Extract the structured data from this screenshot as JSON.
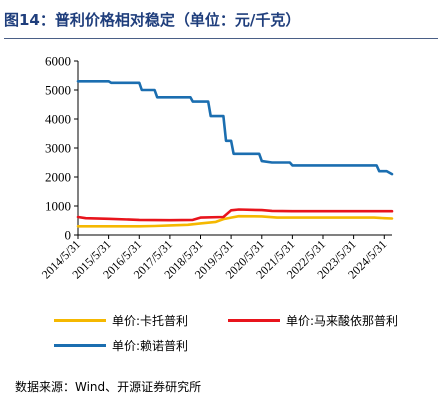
{
  "figure": {
    "title": "图14：普利价格相对稳定（单位：元/千克）",
    "source": "数据来源：Wind、开源证券研究所"
  },
  "chart_data": {
    "type": "line",
    "title": "普利价格相对稳定（单位：元/千克）",
    "xlabel": "",
    "ylabel": "",
    "ylim": [
      0,
      6000
    ],
    "yticks": [
      0,
      1000,
      2000,
      3000,
      4000,
      5000,
      6000
    ],
    "xlim": [
      "2014-05-31",
      "2024-08-31"
    ],
    "xticks": [
      "2014/5/31",
      "2015/5/31",
      "2016/5/31",
      "2017/5/31",
      "2018/5/31",
      "2019/5/31",
      "2020/5/31",
      "2021/5/31",
      "2022/5/31",
      "2023/5/31",
      "2024/5/31"
    ],
    "grid": false,
    "legend_position": "bottom",
    "series": [
      {
        "name": "单价:卡托普利",
        "color": "#f5b800",
        "points": [
          [
            "2014-05-31",
            300
          ],
          [
            "2015-05-31",
            300
          ],
          [
            "2016-05-31",
            300
          ],
          [
            "2016-11-30",
            310
          ],
          [
            "2017-05-31",
            330
          ],
          [
            "2017-12-31",
            350
          ],
          [
            "2018-05-31",
            400
          ],
          [
            "2018-11-30",
            450
          ],
          [
            "2019-02-28",
            550
          ],
          [
            "2019-05-31",
            600
          ],
          [
            "2019-08-31",
            650
          ],
          [
            "2020-05-31",
            640
          ],
          [
            "2020-11-30",
            600
          ],
          [
            "2021-05-31",
            600
          ],
          [
            "2022-05-31",
            600
          ],
          [
            "2023-05-31",
            600
          ],
          [
            "2024-01-31",
            600
          ],
          [
            "2024-05-31",
            580
          ],
          [
            "2024-08-31",
            570
          ]
        ]
      },
      {
        "name": "单价:马来酸依那普利",
        "color": "#e8141c",
        "points": [
          [
            "2014-05-31",
            620
          ],
          [
            "2014-08-31",
            580
          ],
          [
            "2015-05-31",
            560
          ],
          [
            "2016-05-31",
            520
          ],
          [
            "2017-05-31",
            510
          ],
          [
            "2018-02-28",
            520
          ],
          [
            "2018-05-31",
            600
          ],
          [
            "2019-02-28",
            620
          ],
          [
            "2019-05-31",
            850
          ],
          [
            "2019-08-31",
            880
          ],
          [
            "2020-05-31",
            860
          ],
          [
            "2020-09-30",
            830
          ],
          [
            "2021-05-31",
            820
          ],
          [
            "2022-05-31",
            820
          ],
          [
            "2023-05-31",
            820
          ],
          [
            "2024-05-31",
            820
          ],
          [
            "2024-08-31",
            820
          ]
        ]
      },
      {
        "name": "单价:赖诺普利",
        "color": "#1b6eb0",
        "points": [
          [
            "2014-05-31",
            5300
          ],
          [
            "2015-05-31",
            5300
          ],
          [
            "2015-06-30",
            5250
          ],
          [
            "2016-05-31",
            5250
          ],
          [
            "2016-06-30",
            5000
          ],
          [
            "2016-11-30",
            5000
          ],
          [
            "2016-12-31",
            4750
          ],
          [
            "2018-01-31",
            4750
          ],
          [
            "2018-02-28",
            4600
          ],
          [
            "2018-08-31",
            4600
          ],
          [
            "2018-09-30",
            4100
          ],
          [
            "2019-02-28",
            4100
          ],
          [
            "2019-03-31",
            3250
          ],
          [
            "2019-05-31",
            3250
          ],
          [
            "2019-06-30",
            2800
          ],
          [
            "2020-04-30",
            2800
          ],
          [
            "2020-05-31",
            2550
          ],
          [
            "2020-09-30",
            2500
          ],
          [
            "2021-04-30",
            2500
          ],
          [
            "2021-05-31",
            2400
          ],
          [
            "2022-05-31",
            2400
          ],
          [
            "2023-05-31",
            2400
          ],
          [
            "2024-02-29",
            2400
          ],
          [
            "2024-03-31",
            2200
          ],
          [
            "2024-06-30",
            2200
          ],
          [
            "2024-08-31",
            2100
          ]
        ]
      }
    ]
  }
}
